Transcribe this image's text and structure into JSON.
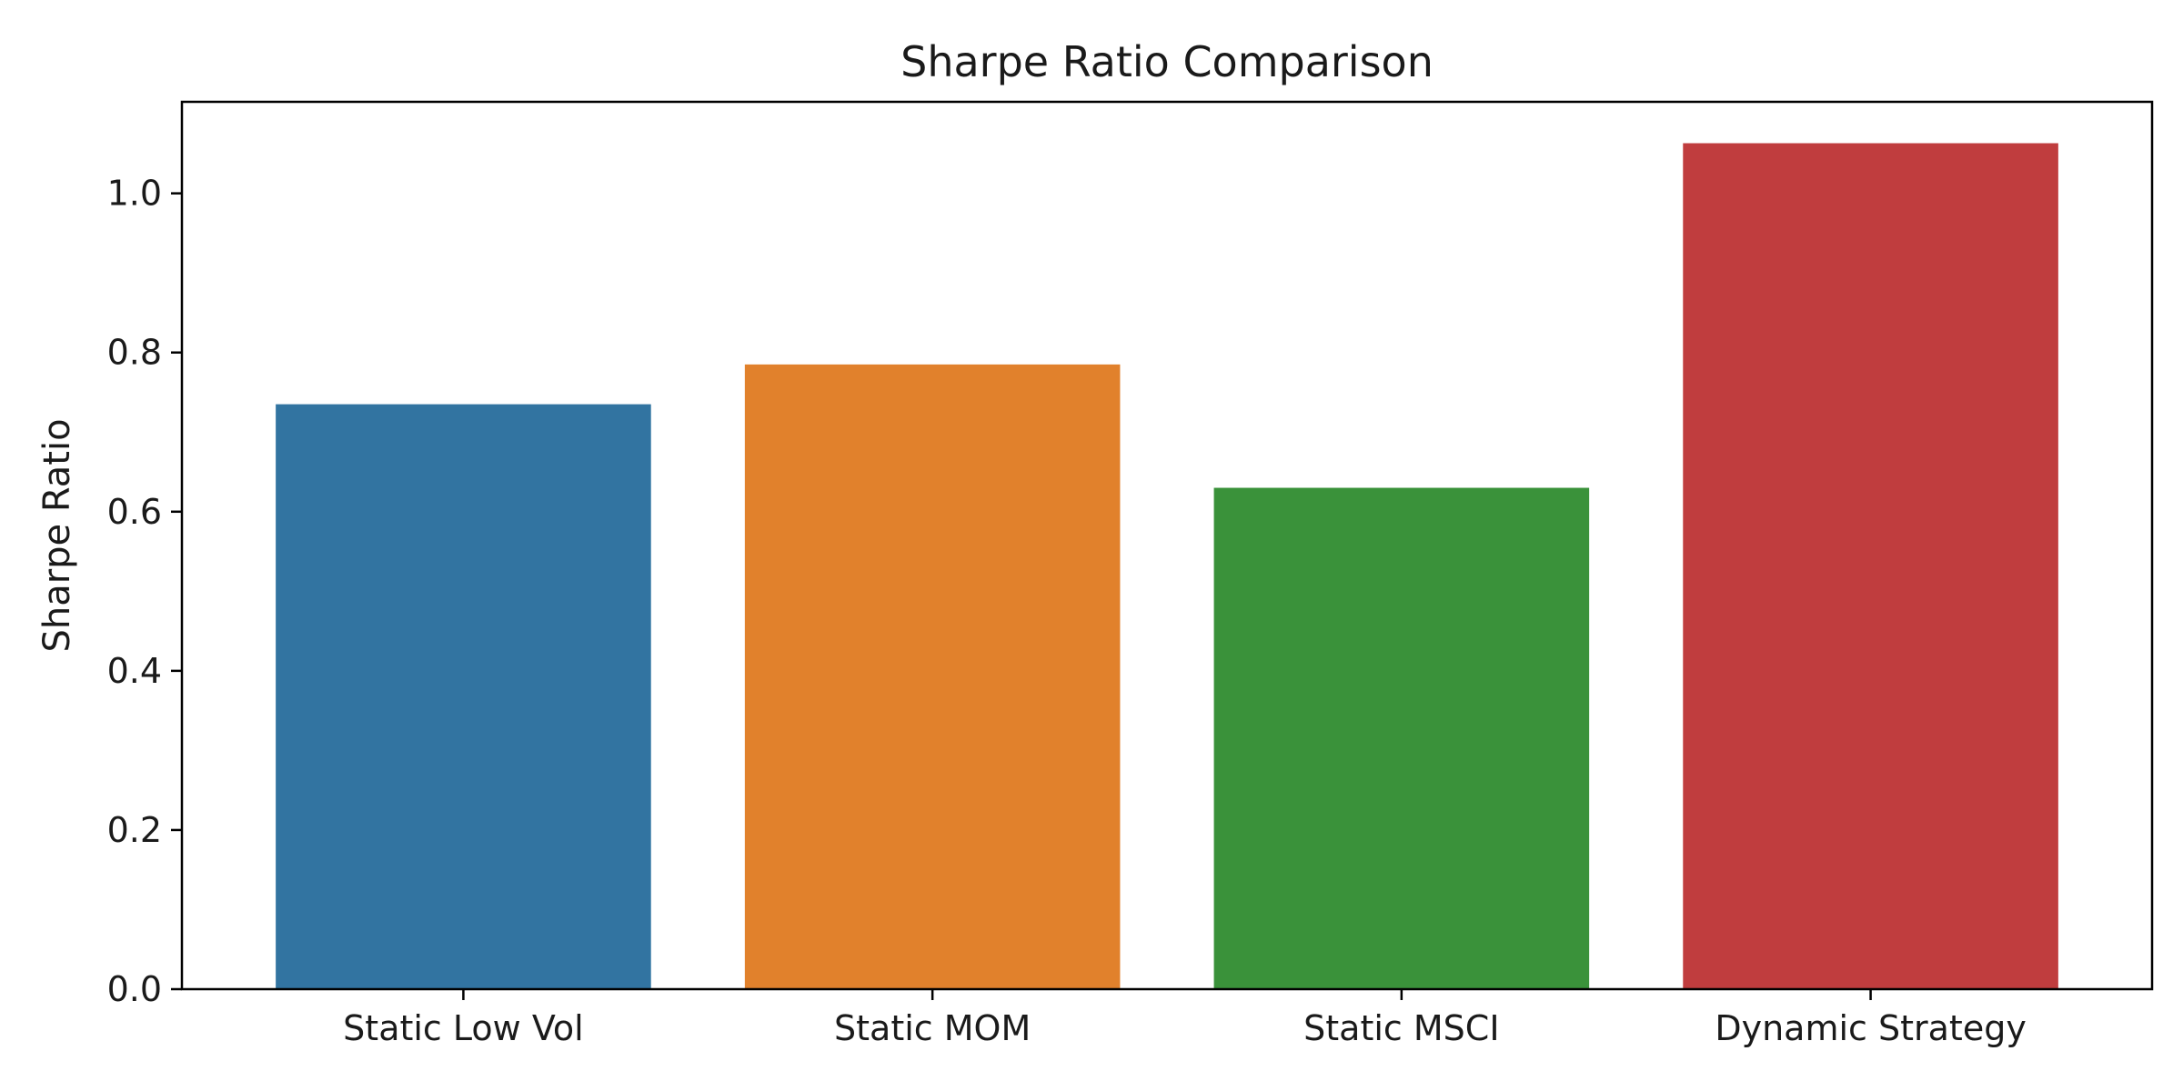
{
  "chart_data": {
    "type": "bar",
    "title": "Sharpe Ratio Comparison",
    "xlabel": "",
    "ylabel": "Sharpe Ratio",
    "categories": [
      "Static Low Vol",
      "Static MOM",
      "Static MSCI",
      "Dynamic Strategy"
    ],
    "values": [
      0.735,
      0.785,
      0.63,
      1.063
    ],
    "colors": [
      "#3274a1",
      "#e1812c",
      "#3a923a",
      "#c03d3e"
    ],
    "ylim": [
      0,
      1.115
    ],
    "yticks": [
      0.0,
      0.2,
      0.4,
      0.6,
      0.8,
      1.0
    ],
    "ytick_labels": [
      "0.0",
      "0.2",
      "0.4",
      "0.6",
      "0.8",
      "1.0"
    ],
    "grid": false,
    "legend": "none"
  }
}
